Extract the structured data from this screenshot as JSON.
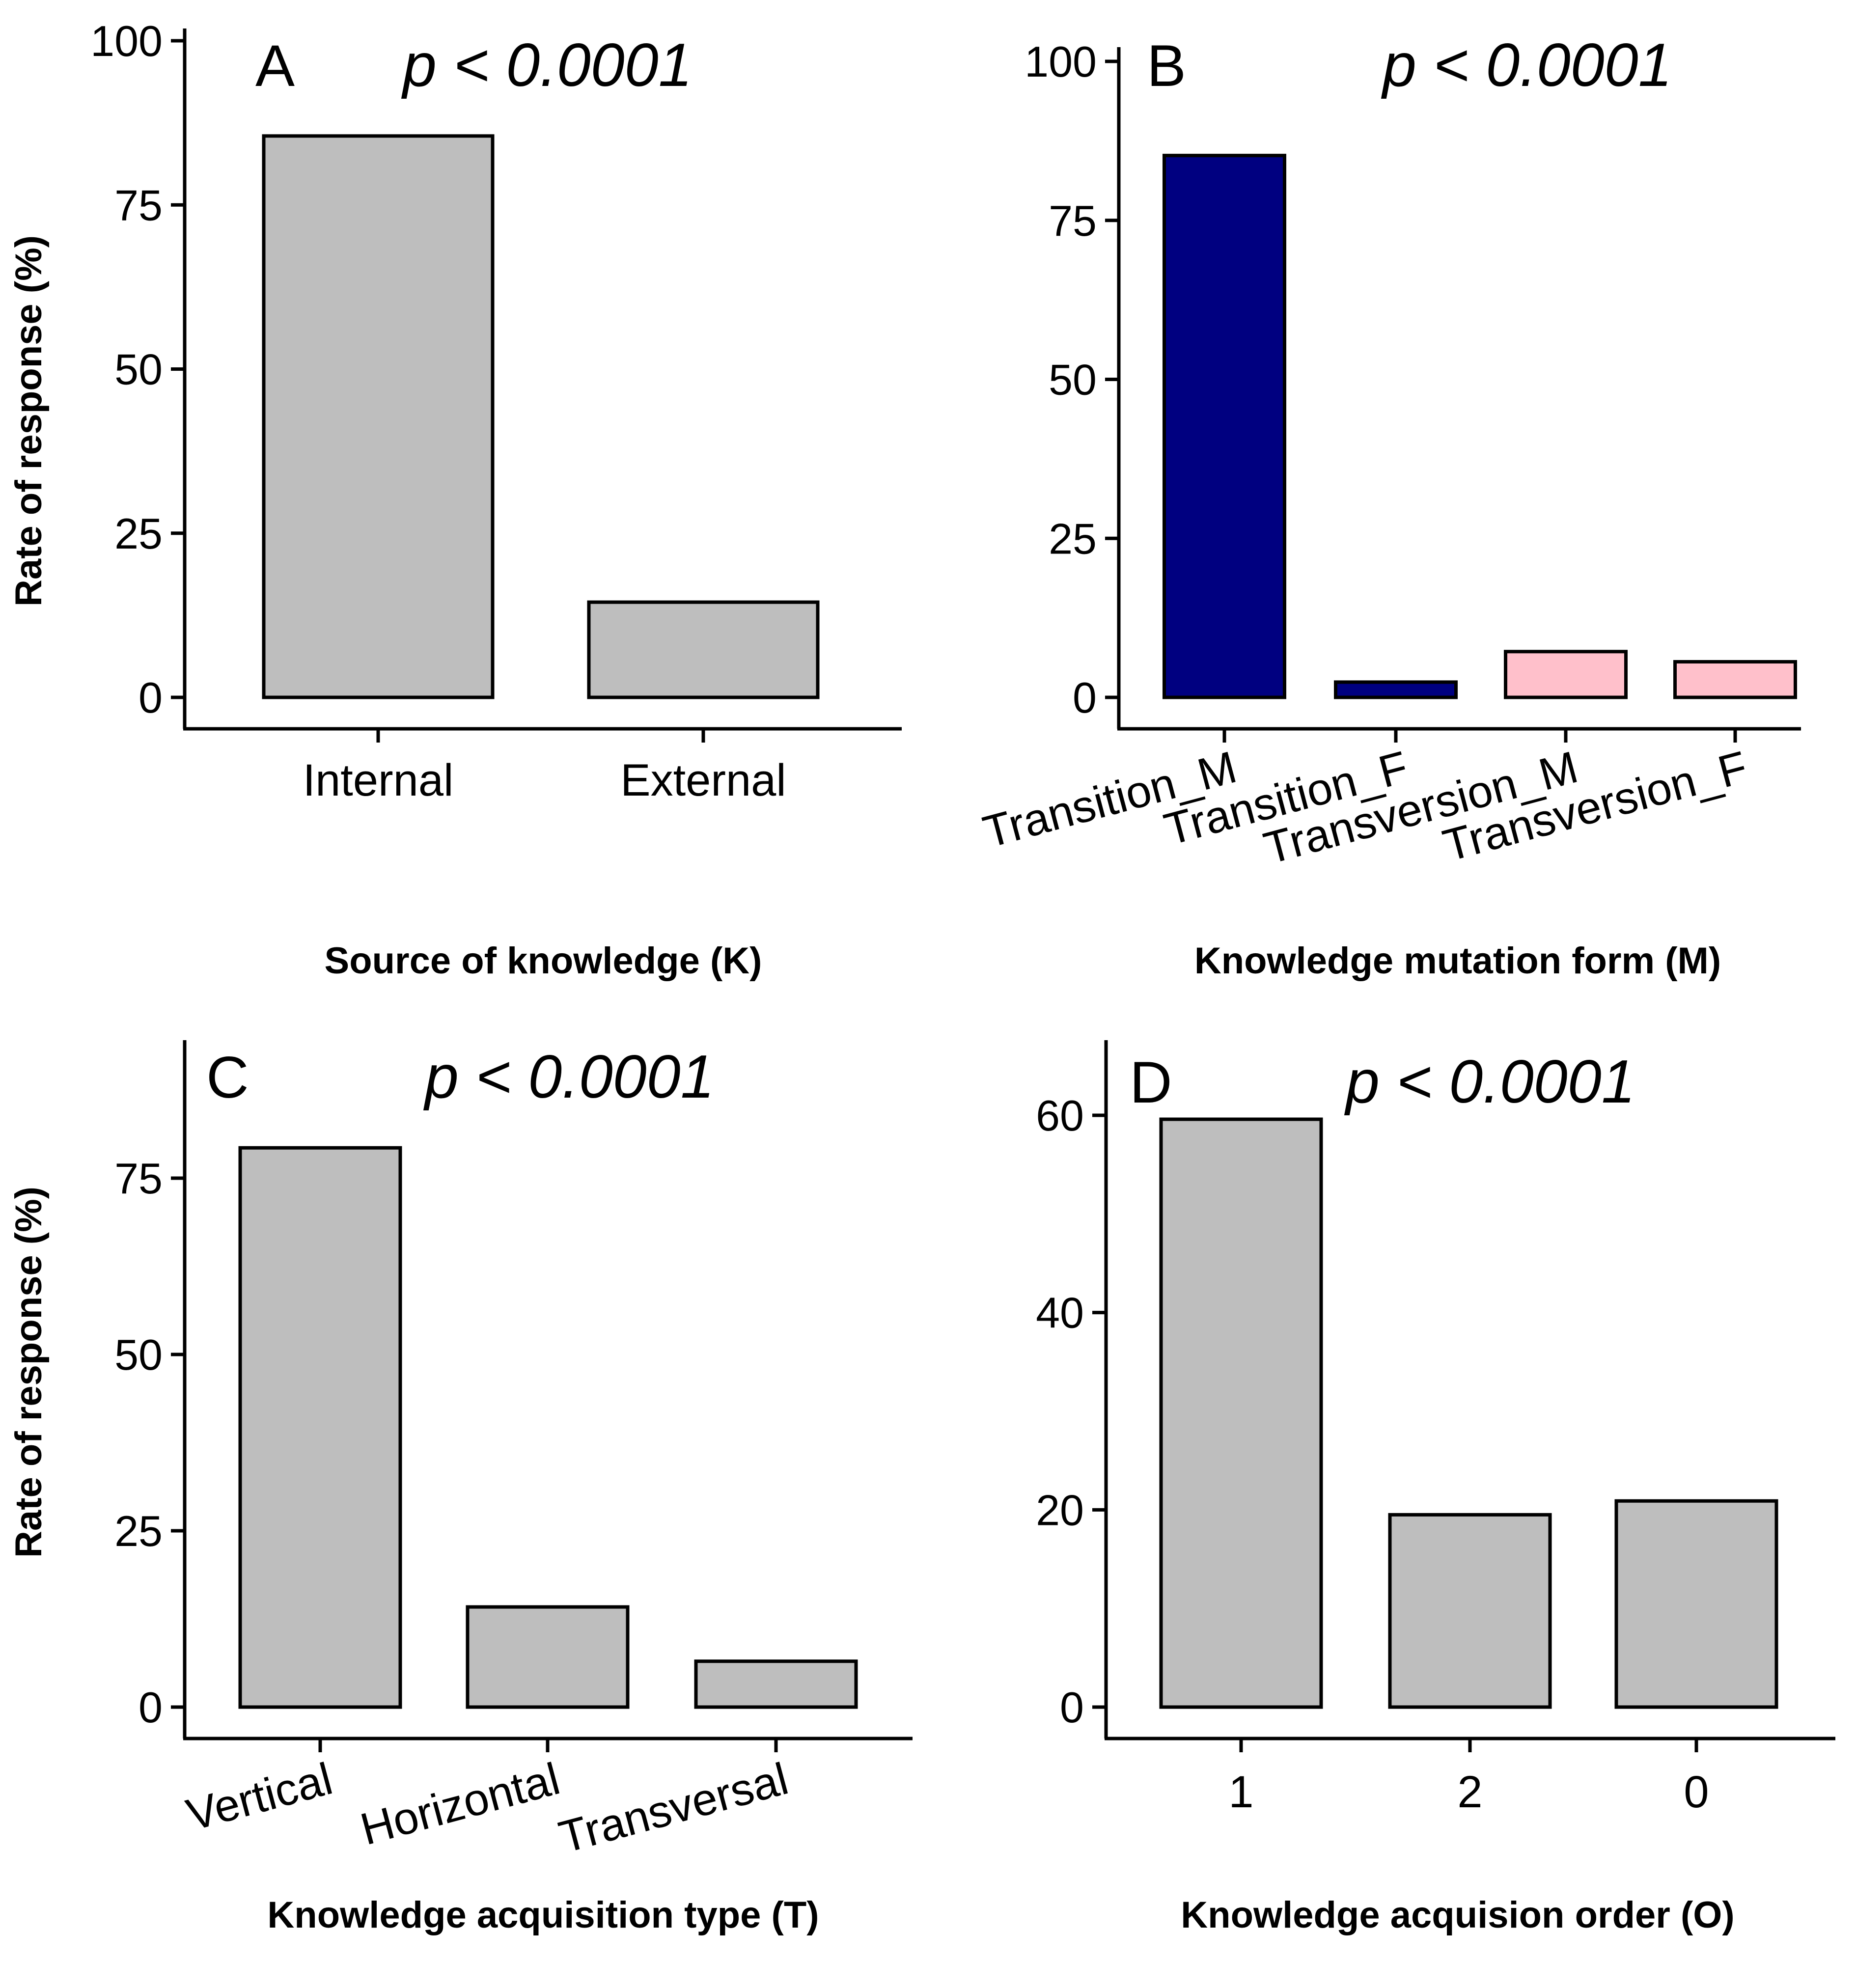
{
  "figure": {
    "ylabel": "Rate of response (%)"
  },
  "chart_data": [
    {
      "type": "bar",
      "panel": "A",
      "annotation": "p < 0.0001",
      "xlabel": "Source of knowledge (K)",
      "ylabel": "Rate of response (%)",
      "categories": [
        "Internal",
        "External"
      ],
      "values": [
        85.5,
        14.5
      ],
      "colors": [
        "#bebebe",
        "#bebebe"
      ],
      "ylim": [
        0,
        100
      ],
      "yticks": [
        0,
        25,
        50,
        75,
        100
      ],
      "xtick_rotation": 0
    },
    {
      "type": "bar",
      "panel": "B",
      "annotation": "p < 0.0001",
      "xlabel": "Knowledge mutation form (M)",
      "ylabel": "",
      "categories": [
        "Transition_M",
        "Transition_F",
        "Transversion_M",
        "Transversion_F"
      ],
      "values": [
        85.2,
        2.4,
        7.2,
        5.6
      ],
      "colors": [
        "#000080",
        "#000080",
        "#ffc0cb",
        "#ffc0cb"
      ],
      "ylim": [
        0,
        100
      ],
      "yticks": [
        0,
        25,
        50,
        75,
        100
      ],
      "xtick_rotation": -15
    },
    {
      "type": "bar",
      "panel": "C",
      "annotation": "p < 0.0001",
      "xlabel": "Knowledge acquisition type (T)",
      "ylabel": "Rate of response (%)",
      "categories": [
        "Vertical",
        "Horizontal",
        "Transversal"
      ],
      "values": [
        79.3,
        14.2,
        6.5
      ],
      "colors": [
        "#bebebe",
        "#bebebe",
        "#bebebe"
      ],
      "ylim": [
        0,
        79.3
      ],
      "yticks": [
        0,
        25,
        50,
        75
      ],
      "xtick_rotation": -15
    },
    {
      "type": "bar",
      "panel": "D",
      "annotation": "p < 0.0001",
      "xlabel": "Knowledge acquision order (O)",
      "ylabel": "",
      "categories": [
        "1",
        "2",
        "0"
      ],
      "values": [
        59.6,
        19.5,
        20.9
      ],
      "colors": [
        "#bebebe",
        "#bebebe",
        "#bebebe"
      ],
      "ylim": [
        0,
        59.6
      ],
      "yticks": [
        0,
        20,
        40,
        60
      ],
      "xtick_rotation": 0
    }
  ]
}
